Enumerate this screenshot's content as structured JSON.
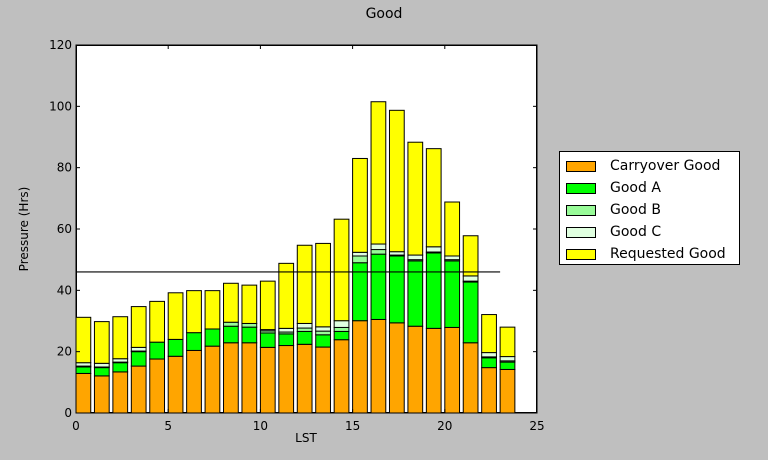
{
  "title": "Good",
  "chart_data": {
    "type": "bar",
    "stacked": true,
    "title": "Good",
    "xlabel": "LST",
    "ylabel": "Pressure (Hrs)",
    "xlim": [
      0,
      25
    ],
    "ylim": [
      0,
      120
    ],
    "xticks": [
      0,
      5,
      10,
      15,
      20,
      25
    ],
    "yticks": [
      0,
      20,
      40,
      60,
      80,
      100,
      120
    ],
    "bar_width": 0.8,
    "grid": false,
    "legend_position": "right outside",
    "categories": [
      0,
      1,
      2,
      3,
      4,
      5,
      6,
      7,
      8,
      9,
      10,
      11,
      12,
      13,
      14,
      15,
      16,
      17,
      18,
      19,
      20,
      21,
      22,
      23
    ],
    "series": [
      {
        "name": "Carryover Good",
        "color": "#ffa500",
        "values": [
          12.9,
          12.1,
          13.4,
          15.3,
          17.6,
          18.5,
          20.4,
          21.8,
          22.9,
          22.9,
          21.4,
          22.0,
          22.4,
          21.5,
          23.9,
          30.1,
          30.5,
          29.4,
          28.3,
          27.6,
          27.9,
          22.9,
          14.8,
          14.2
        ]
      },
      {
        "name": "Good A",
        "color": "#00ff00",
        "values": [
          2.1,
          2.7,
          3.0,
          4.7,
          5.5,
          5.5,
          5.8,
          5.6,
          5.4,
          5.1,
          4.7,
          3.8,
          4.2,
          4.0,
          2.7,
          18.9,
          21.3,
          21.8,
          21.3,
          24.6,
          21.7,
          19.8,
          3.2,
          2.4
        ]
      },
      {
        "name": "Good B",
        "color": "#98fb98",
        "values": [
          0.3,
          0.2,
          0.2,
          0.2,
          0,
          0,
          0,
          0,
          1.3,
          1.2,
          0.7,
          0.6,
          1.1,
          1.2,
          1.3,
          2.2,
          1.5,
          0.3,
          0.4,
          0.3,
          0.4,
          0.3,
          0.3,
          0.4
        ]
      },
      {
        "name": "Good C",
        "color": "#e0ffe0",
        "values": [
          1.1,
          1.2,
          1.1,
          1.2,
          0,
          0,
          0,
          0,
          0,
          0,
          0.4,
          1.2,
          1.5,
          1.4,
          2.2,
          1.2,
          1.8,
          1.1,
          1.5,
          1.7,
          1.2,
          1.7,
          1.4,
          1.4
        ]
      },
      {
        "name": "Requested Good",
        "color": "#ffff00",
        "values": [
          14.8,
          13.6,
          13.7,
          13.3,
          13.3,
          15.2,
          13.7,
          12.5,
          12.7,
          12.5,
          15.8,
          21.2,
          25.5,
          27.2,
          33.1,
          30.6,
          46.4,
          46.1,
          36.8,
          32.0,
          17.6,
          13.1,
          12.4,
          9.6
        ]
      }
    ],
    "annotations": [
      {
        "type": "hline",
        "y": 46,
        "x_start": 0,
        "x_end": 23.0,
        "color": "#000000"
      }
    ]
  }
}
